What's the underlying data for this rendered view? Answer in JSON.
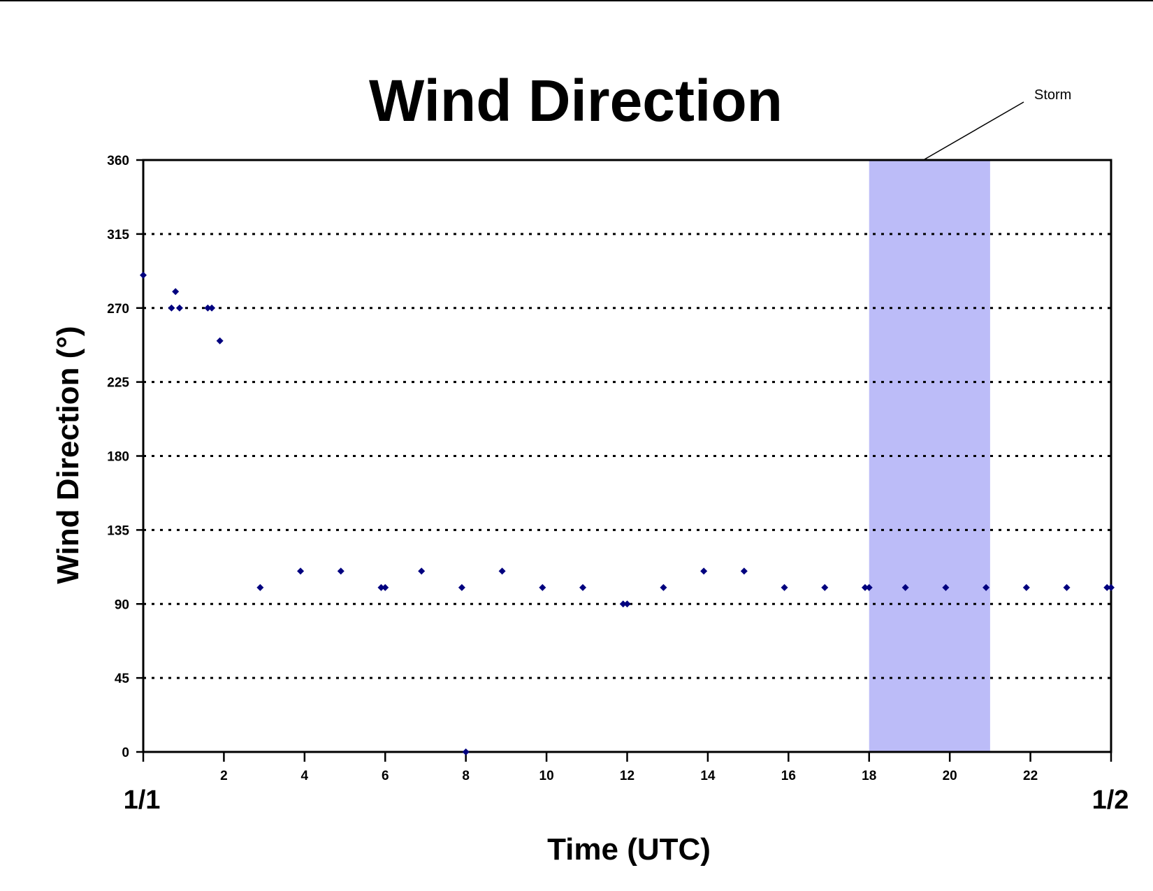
{
  "chart_data": {
    "type": "scatter",
    "title": "Wind Direction",
    "xlabel": "Time (UTC)",
    "ylabel": "Wind Direction (°)",
    "xlim": [
      0,
      24
    ],
    "ylim": [
      0,
      360
    ],
    "x_ticks": [
      2,
      4,
      6,
      8,
      10,
      12,
      14,
      16,
      18,
      20,
      22
    ],
    "y_ticks": [
      0,
      45,
      90,
      135,
      180,
      225,
      270,
      315,
      360
    ],
    "date_labels": {
      "start": "1/1",
      "end": "1/2"
    },
    "grid": "horizontal dotted",
    "legend": "none",
    "series": [
      {
        "color": "#00007f",
        "marker": "diamond",
        "points": [
          [
            0.0,
            290
          ],
          [
            0.7,
            270
          ],
          [
            0.8,
            280
          ],
          [
            0.9,
            270
          ],
          [
            1.6,
            270
          ],
          [
            1.7,
            270
          ],
          [
            1.9,
            250
          ],
          [
            2.9,
            100
          ],
          [
            3.9,
            110
          ],
          [
            4.9,
            110
          ],
          [
            5.9,
            100
          ],
          [
            6.0,
            100
          ],
          [
            6.9,
            110
          ],
          [
            7.9,
            100
          ],
          [
            8.0,
            0
          ],
          [
            8.9,
            110
          ],
          [
            9.9,
            100
          ],
          [
            10.9,
            100
          ],
          [
            11.9,
            90
          ],
          [
            12.0,
            90
          ],
          [
            12.9,
            100
          ],
          [
            13.9,
            110
          ],
          [
            14.9,
            110
          ],
          [
            15.9,
            100
          ],
          [
            16.9,
            100
          ],
          [
            17.9,
            100
          ],
          [
            18.0,
            100
          ],
          [
            18.9,
            100
          ],
          [
            19.9,
            100
          ],
          [
            20.9,
            100
          ],
          [
            21.9,
            100
          ],
          [
            22.9,
            100
          ],
          [
            23.9,
            100
          ],
          [
            24.0,
            100
          ]
        ]
      }
    ],
    "highlight": {
      "label": "Storm",
      "x_range": [
        18,
        21
      ],
      "color": "#bcbcf8"
    }
  }
}
